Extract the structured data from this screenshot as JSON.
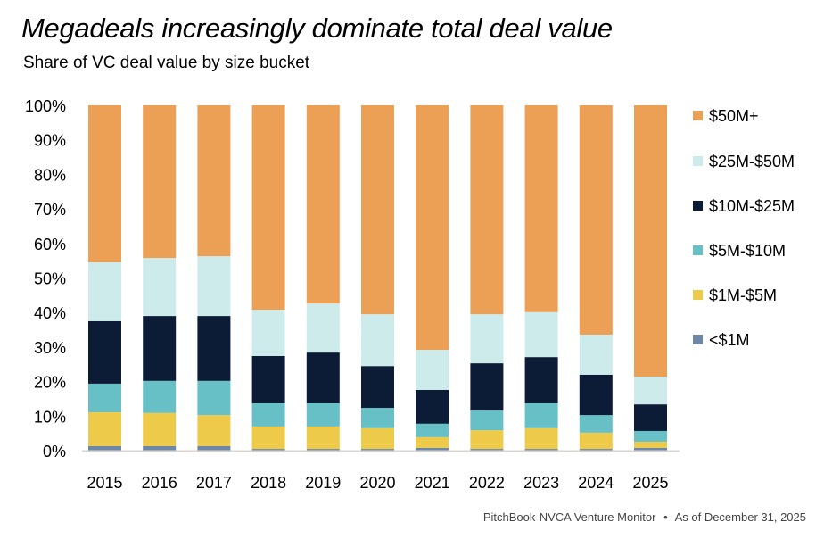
{
  "title": "Megadeals increasingly dominate total deal value",
  "subtitle": "Share of VC deal value by size bucket",
  "footer": {
    "source": "PitchBook-NVCA Venture Monitor",
    "separator": "•",
    "date": "As of December 31, 2025"
  },
  "chart_data": {
    "type": "bar",
    "stacked": true,
    "categories": [
      "2015",
      "2016",
      "2017",
      "2018",
      "2019",
      "2020",
      "2021",
      "2022",
      "2023",
      "2024",
      "2025"
    ],
    "ylim": [
      0,
      100
    ],
    "yticks": [
      "0%",
      "10%",
      "20%",
      "30%",
      "40%",
      "50%",
      "60%",
      "70%",
      "80%",
      "90%",
      "100%"
    ],
    "grid": false,
    "legend": "right",
    "series": [
      {
        "name": "<$1M",
        "color": "#6D87A6",
        "values": [
          1.3,
          1.3,
          1.3,
          0.5,
          0.5,
          0.5,
          0.8,
          0.5,
          0.5,
          0.5,
          0.8
        ]
      },
      {
        "name": "$1M-$5M",
        "color": "#EDCA4A",
        "values": [
          9.8,
          9.6,
          9.0,
          6.5,
          6.5,
          6.0,
          3.1,
          5.4,
          6.0,
          4.7,
          1.8
        ]
      },
      {
        "name": "$5M-$10M",
        "color": "#67C0C5",
        "values": [
          8.3,
          9.3,
          9.9,
          6.7,
          6.7,
          5.9,
          3.9,
          5.7,
          7.2,
          5.1,
          3.1
        ]
      },
      {
        "name": "$10M-$25M",
        "color": "#0C1C36",
        "values": [
          18.1,
          18.8,
          18.8,
          13.7,
          14.7,
          12.1,
          9.8,
          13.7,
          13.4,
          11.7,
          7.7
        ]
      },
      {
        "name": "$25M-$50M",
        "color": "#CDEBEA",
        "values": [
          17.0,
          16.8,
          17.3,
          13.4,
          14.2,
          15.0,
          11.6,
          14.2,
          13.0,
          11.6,
          8.0
        ]
      },
      {
        "name": "$50M+",
        "color": "#EBA055",
        "values": [
          45.5,
          44.2,
          43.7,
          59.2,
          57.4,
          60.5,
          70.8,
          60.5,
          59.9,
          66.4,
          78.6
        ]
      }
    ]
  }
}
